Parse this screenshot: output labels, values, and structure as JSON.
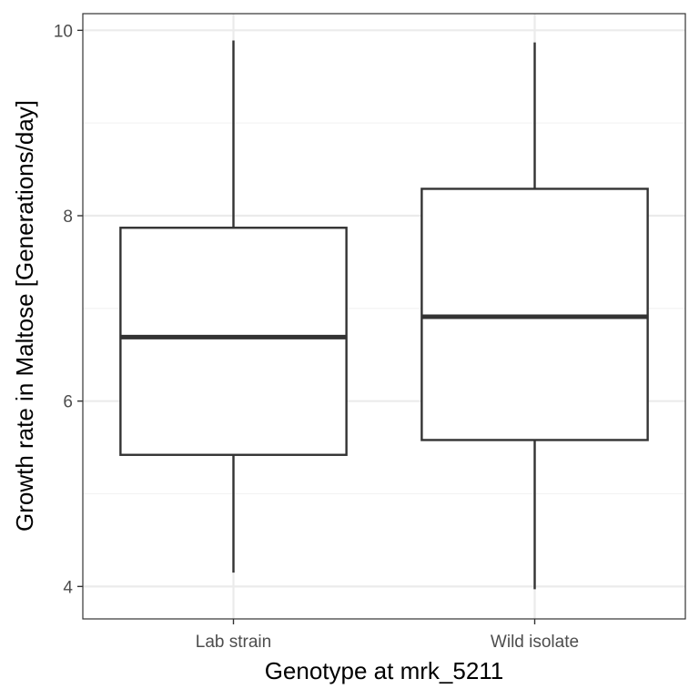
{
  "chart_data": {
    "type": "boxplot",
    "title": "",
    "xlabel": "Genotype at mrk_5211",
    "ylabel": "Growth rate in Maltose [Generations/day]",
    "categories": [
      "Lab strain",
      "Wild isolate"
    ],
    "boxes": [
      {
        "category": "Lab strain",
        "min": 4.15,
        "q1": 5.42,
        "median": 6.69,
        "q3": 7.87,
        "max": 9.89
      },
      {
        "category": "Wild isolate",
        "min": 3.97,
        "q1": 5.58,
        "median": 6.91,
        "q3": 8.29,
        "max": 9.87
      }
    ],
    "ylim": [
      3.65,
      10.18
    ],
    "yticks": [
      4,
      6,
      8,
      10
    ],
    "ytick_labels": [
      "4",
      "6",
      "8",
      "10"
    ],
    "grid": true,
    "theme_colors": {
      "box_stroke": "#333333",
      "grid_major": "#ebebeb",
      "grid_minor": "#f3f3f3",
      "panel_border": "#333333",
      "tick_text": "#4d4d4d"
    }
  }
}
